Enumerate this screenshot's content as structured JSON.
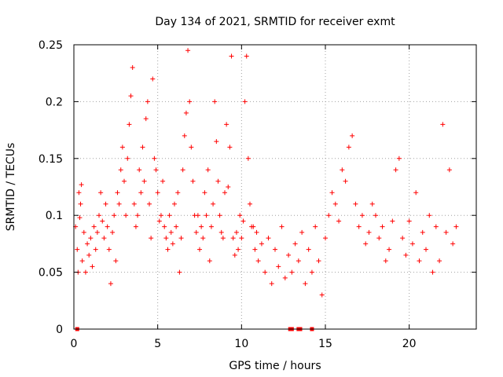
{
  "chart_data": {
    "type": "scatter",
    "title": "Day 134 of 2021, SRMTID for receiver exmt",
    "xlabel": "GPS time / hours",
    "ylabel": "SRMTID / TECUs",
    "xlim": [
      0,
      24
    ],
    "ylim": [
      0,
      0.25
    ],
    "xticks": [
      0,
      5,
      10,
      15,
      20
    ],
    "yticks": [
      0,
      0.05,
      0.1,
      0.15,
      0.2,
      0.25
    ],
    "ytick_labels": [
      "0",
      "0.05",
      "0.1",
      "0.15",
      "0.2",
      "0.25"
    ],
    "grid": true,
    "marker": "plus",
    "color": "#ff0000",
    "series": [
      {
        "name": "SRMTID",
        "points": [
          [
            0.1,
            0.09
          ],
          [
            0.2,
            0.07
          ],
          [
            0.25,
            0.05
          ],
          [
            0.3,
            0.12
          ],
          [
            0.35,
            0.098
          ],
          [
            0.4,
            0.11
          ],
          [
            0.45,
            0.127
          ],
          [
            0.5,
            0.06
          ],
          [
            0.6,
            0.085
          ],
          [
            0.7,
            0.05
          ],
          [
            0.8,
            0.075
          ],
          [
            0.9,
            0.065
          ],
          [
            1.0,
            0.08
          ],
          [
            1.1,
            0.055
          ],
          [
            1.2,
            0.09
          ],
          [
            1.3,
            0.07
          ],
          [
            1.4,
            0.085
          ],
          [
            1.5,
            0.1
          ],
          [
            1.6,
            0.12
          ],
          [
            1.7,
            0.095
          ],
          [
            1.8,
            0.08
          ],
          [
            1.9,
            0.11
          ],
          [
            2.0,
            0.09
          ],
          [
            2.1,
            0.07
          ],
          [
            2.2,
            0.04
          ],
          [
            2.3,
            0.085
          ],
          [
            2.4,
            0.1
          ],
          [
            2.5,
            0.06
          ],
          [
            2.6,
            0.12
          ],
          [
            2.7,
            0.11
          ],
          [
            2.8,
            0.14
          ],
          [
            2.9,
            0.16
          ],
          [
            3.0,
            0.13
          ],
          [
            3.1,
            0.1
          ],
          [
            3.2,
            0.15
          ],
          [
            3.3,
            0.18
          ],
          [
            3.4,
            0.205
          ],
          [
            3.5,
            0.23
          ],
          [
            3.6,
            0.11
          ],
          [
            3.7,
            0.09
          ],
          [
            3.8,
            0.1
          ],
          [
            3.9,
            0.14
          ],
          [
            4.0,
            0.12
          ],
          [
            4.1,
            0.16
          ],
          [
            4.2,
            0.13
          ],
          [
            4.3,
            0.185
          ],
          [
            4.4,
            0.2
          ],
          [
            4.5,
            0.11
          ],
          [
            4.6,
            0.08
          ],
          [
            4.7,
            0.22
          ],
          [
            4.8,
            0.15
          ],
          [
            4.9,
            0.14
          ],
          [
            5.0,
            0.12
          ],
          [
            5.1,
            0.095
          ],
          [
            5.2,
            0.1
          ],
          [
            5.3,
            0.13
          ],
          [
            5.4,
            0.09
          ],
          [
            5.5,
            0.08
          ],
          [
            5.6,
            0.07
          ],
          [
            5.7,
            0.1
          ],
          [
            5.8,
            0.085
          ],
          [
            5.9,
            0.075
          ],
          [
            6.0,
            0.11
          ],
          [
            6.1,
            0.09
          ],
          [
            6.2,
            0.12
          ],
          [
            6.3,
            0.05
          ],
          [
            6.4,
            0.08
          ],
          [
            6.5,
            0.14
          ],
          [
            6.6,
            0.17
          ],
          [
            6.7,
            0.19
          ],
          [
            6.8,
            0.245
          ],
          [
            6.9,
            0.2
          ],
          [
            7.0,
            0.16
          ],
          [
            7.1,
            0.13
          ],
          [
            7.2,
            0.1
          ],
          [
            7.3,
            0.085
          ],
          [
            7.4,
            0.1
          ],
          [
            7.5,
            0.07
          ],
          [
            7.6,
            0.09
          ],
          [
            7.7,
            0.08
          ],
          [
            7.8,
            0.12
          ],
          [
            7.9,
            0.1
          ],
          [
            8.0,
            0.14
          ],
          [
            8.1,
            0.06
          ],
          [
            8.2,
            0.09
          ],
          [
            8.3,
            0.11
          ],
          [
            8.4,
            0.2
          ],
          [
            8.5,
            0.165
          ],
          [
            8.6,
            0.13
          ],
          [
            8.7,
            0.1
          ],
          [
            8.8,
            0.085
          ],
          [
            8.9,
            0.08
          ],
          [
            9.0,
            0.12
          ],
          [
            9.1,
            0.18
          ],
          [
            9.2,
            0.125
          ],
          [
            9.3,
            0.16
          ],
          [
            9.4,
            0.24
          ],
          [
            9.5,
            0.08
          ],
          [
            9.6,
            0.065
          ],
          [
            9.7,
            0.085
          ],
          [
            9.8,
            0.07
          ],
          [
            9.9,
            0.1
          ],
          [
            10.0,
            0.08
          ],
          [
            10.1,
            0.095
          ],
          [
            10.2,
            0.2
          ],
          [
            10.3,
            0.24
          ],
          [
            10.4,
            0.15
          ],
          [
            10.5,
            0.11
          ],
          [
            10.6,
            0.09
          ],
          [
            10.7,
            0.09
          ],
          [
            10.8,
            0.07
          ],
          [
            10.9,
            0.085
          ],
          [
            11.0,
            0.06
          ],
          [
            11.2,
            0.075
          ],
          [
            11.4,
            0.05
          ],
          [
            11.6,
            0.08
          ],
          [
            11.8,
            0.04
          ],
          [
            12.0,
            0.07
          ],
          [
            12.2,
            0.055
          ],
          [
            12.4,
            0.09
          ],
          [
            12.6,
            0.045
          ],
          [
            12.8,
            0.065
          ],
          [
            13.0,
            0.05
          ],
          [
            13.2,
            0.075
          ],
          [
            13.4,
            0.06
          ],
          [
            13.6,
            0.085
          ],
          [
            13.8,
            0.04
          ],
          [
            14.0,
            0.07
          ],
          [
            14.2,
            0.05
          ],
          [
            14.4,
            0.09
          ],
          [
            14.6,
            0.06
          ],
          [
            14.8,
            0.03
          ],
          [
            15.0,
            0.08
          ],
          [
            15.2,
            0.1
          ],
          [
            15.4,
            0.12
          ],
          [
            15.6,
            0.11
          ],
          [
            15.8,
            0.095
          ],
          [
            16.0,
            0.14
          ],
          [
            16.2,
            0.13
          ],
          [
            16.4,
            0.16
          ],
          [
            16.6,
            0.17
          ],
          [
            16.8,
            0.11
          ],
          [
            17.0,
            0.09
          ],
          [
            17.2,
            0.1
          ],
          [
            17.4,
            0.075
          ],
          [
            17.6,
            0.085
          ],
          [
            17.8,
            0.11
          ],
          [
            18.0,
            0.1
          ],
          [
            18.2,
            0.08
          ],
          [
            18.4,
            0.09
          ],
          [
            18.6,
            0.06
          ],
          [
            18.8,
            0.07
          ],
          [
            19.0,
            0.095
          ],
          [
            19.2,
            0.14
          ],
          [
            19.4,
            0.15
          ],
          [
            19.6,
            0.08
          ],
          [
            19.8,
            0.065
          ],
          [
            20.0,
            0.095
          ],
          [
            20.2,
            0.075
          ],
          [
            20.4,
            0.12
          ],
          [
            20.6,
            0.06
          ],
          [
            20.8,
            0.085
          ],
          [
            21.0,
            0.07
          ],
          [
            21.2,
            0.1
          ],
          [
            21.4,
            0.05
          ],
          [
            21.6,
            0.09
          ],
          [
            21.8,
            0.06
          ],
          [
            22.0,
            0.18
          ],
          [
            22.2,
            0.085
          ],
          [
            22.4,
            0.14
          ],
          [
            22.6,
            0.075
          ],
          [
            22.8,
            0.09
          ]
        ]
      }
    ],
    "zero_markers": [
      0.2,
      12.9,
      13.0,
      13.4,
      13.5,
      14.2
    ]
  }
}
